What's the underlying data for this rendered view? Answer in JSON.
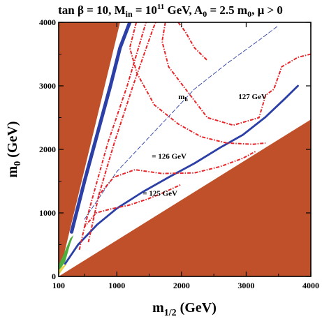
{
  "chart_data": {
    "type": "contour",
    "title_parts": {
      "tanb": "tan β = 10, M",
      "in_sub": "in",
      "eq": " = 10",
      "exp": "11",
      "gev_a": " GeV, A",
      "a_sub": "0",
      "a_val": " = 2.5 m",
      "m_sub": "0",
      "mu": ", μ > 0"
    },
    "xlabel_parts": {
      "base": "m",
      "sub": "1/2",
      "rest": " (GeV)"
    },
    "ylabel_parts": {
      "base": "m",
      "sub": "0",
      "rest": " (GeV)"
    },
    "xlim": [
      100,
      4000
    ],
    "ylim": [
      0,
      4000
    ],
    "xticks": [
      {
        "value": 100,
        "label": "100"
      },
      {
        "value": 1000,
        "label": "1000"
      },
      {
        "value": 2000,
        "label": "2000"
      },
      {
        "value": 3000,
        "label": "3000"
      },
      {
        "value": 4000,
        "label": "4000"
      }
    ],
    "yticks": [
      {
        "value": 0,
        "label": "0"
      },
      {
        "value": 1000,
        "label": "1000"
      },
      {
        "value": 2000,
        "label": "2000"
      },
      {
        "value": 3000,
        "label": "3000"
      },
      {
        "value": 4000,
        "label": "4000"
      }
    ],
    "colors": {
      "excluded": "#bf5029",
      "relic": "#2b3fa6",
      "higgs": "#e8262a",
      "green": "#4cae3c",
      "yellow": "#e7d44a"
    },
    "excluded_regions": [
      {
        "name": "upper-left excluded",
        "polygon": [
          [
            100,
            0
          ],
          [
            1050,
            4000
          ],
          [
            100,
            4000
          ]
        ]
      },
      {
        "name": "lower-right excluded",
        "polygon": [
          [
            100,
            0
          ],
          [
            4000,
            0
          ],
          [
            4000,
            2470
          ]
        ]
      }
    ],
    "relic_strips": [
      {
        "name": "upper relic strip",
        "points": [
          [
            300,
            700
          ],
          [
            500,
            1500
          ],
          [
            700,
            2250
          ],
          [
            900,
            3000
          ],
          [
            1050,
            3600
          ],
          [
            1200,
            4000
          ]
        ]
      },
      {
        "name": "lower relic strip",
        "points": [
          [
            200,
            200
          ],
          [
            400,
            500
          ],
          [
            700,
            820
          ],
          [
            1000,
            1070
          ],
          [
            1400,
            1330
          ],
          [
            1800,
            1560
          ],
          [
            2200,
            1780
          ],
          [
            2600,
            2030
          ],
          [
            2950,
            2230
          ],
          [
            3300,
            2510
          ],
          [
            3600,
            2800
          ],
          [
            3800,
            3000
          ]
        ]
      },
      {
        "name": "thin relic strip",
        "points": [
          [
            500,
            900
          ],
          [
            1000,
            1650
          ],
          [
            1600,
            2300
          ],
          [
            2200,
            2950
          ],
          [
            2700,
            3350
          ],
          [
            3200,
            3720
          ],
          [
            3500,
            3950
          ]
        ]
      }
    ],
    "higgs_contours": [
      {
        "name": "m_h = 125 GeV",
        "label": "= 125 GeV",
        "label_at": [
          1400,
          1270
        ],
        "points": [
          [
            420,
            420
          ],
          [
            500,
            780
          ],
          [
            680,
            1000
          ],
          [
            900,
            1060
          ],
          [
            1180,
            1120
          ],
          [
            1480,
            1220
          ],
          [
            1700,
            1310
          ],
          [
            2000,
            1450
          ]
        ]
      },
      {
        "name": "m_h = 125 GeV branch",
        "label": "",
        "label_at": null,
        "points": [
          [
            500,
            780
          ],
          [
            640,
            1300
          ],
          [
            860,
            2100
          ],
          [
            1160,
            3000
          ],
          [
            1450,
            4000
          ]
        ]
      },
      {
        "name": "m_h = 126 GeV",
        "label": "= 126 GeV",
        "label_at": [
          1540,
          1850
        ],
        "points": [
          [
            560,
            540
          ],
          [
            720,
            1280
          ],
          [
            950,
            1560
          ],
          [
            1280,
            1680
          ],
          [
            1700,
            1620
          ],
          [
            2200,
            1630
          ],
          [
            2600,
            1730
          ],
          [
            2950,
            1860
          ],
          [
            3150,
            1970
          ]
        ]
      },
      {
        "name": "m_h = 126 GeV branch",
        "label": "",
        "label_at": null,
        "points": [
          [
            720,
            1280
          ],
          [
            960,
            2100
          ],
          [
            1250,
            3000
          ],
          [
            1560,
            3900
          ],
          [
            1600,
            4000
          ]
        ]
      },
      {
        "name": "m_h = 127 GeV",
        "label": "127 GeV",
        "label_at": [
          2880,
          2790
        ],
        "points": [
          [
            1300,
            4000
          ],
          [
            1200,
            3600
          ],
          [
            1310,
            3200
          ],
          [
            1580,
            2700
          ],
          [
            1950,
            2400
          ],
          [
            2300,
            2200
          ],
          [
            2700,
            2100
          ],
          [
            3100,
            2080
          ],
          [
            3300,
            2100
          ]
        ]
      },
      {
        "name": "m_h = 127 GeV inner",
        "label": "",
        "label_at": null,
        "points": [
          [
            1750,
            4000
          ],
          [
            1700,
            3700
          ],
          [
            1800,
            3300
          ],
          [
            2100,
            2900
          ],
          [
            2400,
            2500
          ],
          [
            2800,
            2380
          ],
          [
            3200,
            2500
          ],
          [
            3300,
            2850
          ],
          [
            3430,
            2950
          ],
          [
            3550,
            3300
          ],
          [
            3800,
            3450
          ],
          [
            4000,
            3500
          ]
        ]
      },
      {
        "name": "m_h = 127 GeV top",
        "label": "",
        "label_at": null,
        "points": [
          [
            1950,
            4000
          ],
          [
            2060,
            3850
          ],
          [
            2200,
            3600
          ],
          [
            2400,
            3400
          ]
        ]
      }
    ],
    "green_region": [
      [
        100,
        80
      ],
      [
        200,
        230
      ],
      [
        280,
        520
      ],
      [
        330,
        650
      ],
      [
        280,
        600
      ],
      [
        160,
        310
      ],
      [
        100,
        180
      ]
    ],
    "yellow_region": [
      [
        100,
        20
      ],
      [
        170,
        120
      ],
      [
        230,
        200
      ],
      [
        160,
        160
      ],
      [
        100,
        100
      ]
    ],
    "mh_label": {
      "base": "m",
      "sub": "h",
      "at": [
        1950,
        2790
      ]
    }
  }
}
